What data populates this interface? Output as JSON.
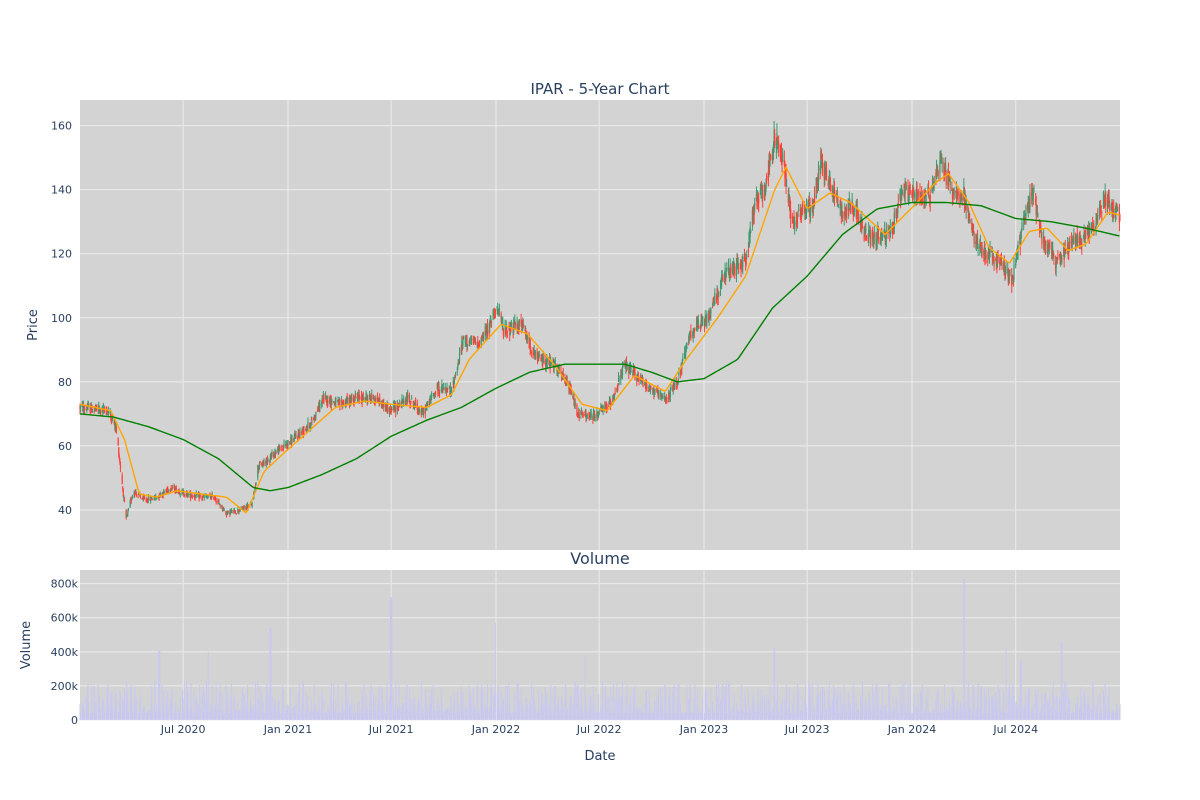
{
  "chart_data": [
    {
      "type": "candlestick",
      "title": "IPAR - 5-Year Chart",
      "ylabel": "Price",
      "xlabel": "",
      "ylim": [
        27.5,
        168
      ],
      "yticks": [
        40,
        60,
        80,
        100,
        120,
        140,
        160
      ],
      "ytick_labels": [
        "40",
        "60",
        "80",
        "100",
        "120",
        "140",
        "160"
      ],
      "x_range": [
        "2020-01-02",
        "2024-12-31"
      ],
      "grid": true,
      "legend": "none",
      "colors": {
        "plot_bg": "#d3d3d3",
        "grid": "#ebebeb",
        "increasing": "#3d9970",
        "decreasing": "#ff4136",
        "ma_short": "#ffa500",
        "ma_long": "#008000",
        "text": "#2a3f5f"
      },
      "price_anchors": [
        [
          "2020-01-02",
          72
        ],
        [
          "2020-02-20",
          71
        ],
        [
          "2020-03-05",
          66
        ],
        [
          "2020-03-12",
          55
        ],
        [
          "2020-03-23",
          37
        ],
        [
          "2020-04-05",
          46
        ],
        [
          "2020-04-25",
          43
        ],
        [
          "2020-05-15",
          44
        ],
        [
          "2020-06-10",
          47
        ],
        [
          "2020-07-05",
          45
        ],
        [
          "2020-08-01",
          44
        ],
        [
          "2020-08-25",
          44
        ],
        [
          "2020-09-15",
          39
        ],
        [
          "2020-10-10",
          40
        ],
        [
          "2020-10-31",
          42
        ],
        [
          "2020-11-09",
          53
        ],
        [
          "2020-12-10",
          58
        ],
        [
          "2021-01-10",
          62
        ],
        [
          "2021-02-10",
          67
        ],
        [
          "2021-03-05",
          75
        ],
        [
          "2021-04-01",
          73
        ],
        [
          "2021-05-01",
          75
        ],
        [
          "2021-06-01",
          75
        ],
        [
          "2021-07-01",
          71
        ],
        [
          "2021-08-01",
          75
        ],
        [
          "2021-08-25",
          70
        ],
        [
          "2021-09-20",
          78
        ],
        [
          "2021-10-15",
          77
        ],
        [
          "2021-11-05",
          93
        ],
        [
          "2021-12-01",
          92
        ],
        [
          "2021-12-20",
          97
        ],
        [
          "2022-01-01",
          104
        ],
        [
          "2022-01-15",
          96
        ],
        [
          "2022-02-15",
          98
        ],
        [
          "2022-03-10",
          88
        ],
        [
          "2022-04-15",
          85
        ],
        [
          "2022-05-10",
          78
        ],
        [
          "2022-05-25",
          70
        ],
        [
          "2022-06-20",
          69
        ],
        [
          "2022-07-20",
          73
        ],
        [
          "2022-08-15",
          85
        ],
        [
          "2022-09-10",
          81
        ],
        [
          "2022-10-05",
          77
        ],
        [
          "2022-10-25",
          74
        ],
        [
          "2022-11-15",
          80
        ],
        [
          "2022-12-10",
          96
        ],
        [
          "2023-01-05",
          99
        ],
        [
          "2023-02-05",
          113
        ],
        [
          "2023-03-15",
          118
        ],
        [
          "2023-04-01",
          136
        ],
        [
          "2023-04-20",
          142
        ],
        [
          "2023-05-05",
          156
        ],
        [
          "2023-05-20",
          150
        ],
        [
          "2023-06-05",
          130
        ],
        [
          "2023-06-25",
          134
        ],
        [
          "2023-07-10",
          134
        ],
        [
          "2023-07-25",
          149
        ],
        [
          "2023-08-15",
          140
        ],
        [
          "2023-09-01",
          133
        ],
        [
          "2023-09-20",
          136
        ],
        [
          "2023-10-10",
          126
        ],
        [
          "2023-11-01",
          125
        ],
        [
          "2023-11-25",
          126
        ],
        [
          "2023-12-15",
          140
        ],
        [
          "2024-01-10",
          138
        ],
        [
          "2024-02-01",
          138
        ],
        [
          "2024-02-20",
          150
        ],
        [
          "2024-03-10",
          140
        ],
        [
          "2024-04-01",
          138
        ],
        [
          "2024-04-20",
          124
        ],
        [
          "2024-05-10",
          120
        ],
        [
          "2024-06-05",
          117
        ],
        [
          "2024-06-25",
          112
        ],
        [
          "2024-07-15",
          130
        ],
        [
          "2024-08-01",
          140
        ],
        [
          "2024-08-15",
          126
        ],
        [
          "2024-09-10",
          117
        ],
        [
          "2024-10-05",
          123
        ],
        [
          "2024-10-25",
          125
        ],
        [
          "2024-11-15",
          128
        ],
        [
          "2024-12-05",
          138
        ],
        [
          "2024-12-31",
          131
        ]
      ],
      "ma_short_anchors": [
        [
          "2020-01-02",
          73
        ],
        [
          "2020-02-25",
          71
        ],
        [
          "2020-03-20",
          62
        ],
        [
          "2020-04-15",
          45
        ],
        [
          "2020-05-15",
          44
        ],
        [
          "2020-06-20",
          46
        ],
        [
          "2020-08-01",
          45
        ],
        [
          "2020-09-15",
          44
        ],
        [
          "2020-10-20",
          39
        ],
        [
          "2020-11-20",
          52
        ],
        [
          "2020-12-20",
          57
        ],
        [
          "2021-02-15",
          66
        ],
        [
          "2021-03-25",
          72
        ],
        [
          "2021-05-15",
          74
        ],
        [
          "2021-07-01",
          73
        ],
        [
          "2021-09-01",
          72
        ],
        [
          "2021-10-15",
          76
        ],
        [
          "2021-11-15",
          87
        ],
        [
          "2022-01-10",
          98
        ],
        [
          "2022-02-25",
          95
        ],
        [
          "2022-04-15",
          85
        ],
        [
          "2022-06-01",
          73
        ],
        [
          "2022-07-15",
          71
        ],
        [
          "2022-09-01",
          82
        ],
        [
          "2022-10-25",
          77
        ],
        [
          "2022-12-01",
          87
        ],
        [
          "2023-01-25",
          100
        ],
        [
          "2023-03-15",
          113
        ],
        [
          "2023-05-05",
          140
        ],
        [
          "2023-05-25",
          147
        ],
        [
          "2023-07-01",
          134
        ],
        [
          "2023-08-10",
          139
        ],
        [
          "2023-09-15",
          136
        ],
        [
          "2023-11-15",
          126
        ],
        [
          "2024-01-10",
          136
        ],
        [
          "2024-02-10",
          142
        ],
        [
          "2024-03-05",
          145
        ],
        [
          "2024-04-10",
          136
        ],
        [
          "2024-05-15",
          122
        ],
        [
          "2024-06-20",
          117
        ],
        [
          "2024-07-25",
          127
        ],
        [
          "2024-08-25",
          128
        ],
        [
          "2024-10-01",
          121
        ],
        [
          "2024-11-01",
          123
        ],
        [
          "2024-12-10",
          133
        ],
        [
          "2024-12-31",
          132
        ]
      ],
      "ma_long_anchors": [
        [
          "2020-01-02",
          70
        ],
        [
          "2020-03-01",
          69
        ],
        [
          "2020-05-01",
          66
        ],
        [
          "2020-07-01",
          62
        ],
        [
          "2020-09-01",
          56
        ],
        [
          "2020-11-01",
          47
        ],
        [
          "2020-12-01",
          46
        ],
        [
          "2021-01-01",
          47
        ],
        [
          "2021-03-01",
          51
        ],
        [
          "2021-05-01",
          56
        ],
        [
          "2021-07-01",
          63
        ],
        [
          "2021-09-01",
          68
        ],
        [
          "2021-11-01",
          72
        ],
        [
          "2022-01-01",
          78
        ],
        [
          "2022-03-01",
          83
        ],
        [
          "2022-05-01",
          85.5
        ],
        [
          "2022-07-01",
          85.5
        ],
        [
          "2022-08-15",
          85.5
        ],
        [
          "2022-10-01",
          83
        ],
        [
          "2022-11-15",
          80
        ],
        [
          "2023-01-01",
          81
        ],
        [
          "2023-03-01",
          87
        ],
        [
          "2023-05-01",
          103
        ],
        [
          "2023-07-01",
          113
        ],
        [
          "2023-09-01",
          126
        ],
        [
          "2023-11-01",
          134
        ],
        [
          "2024-01-01",
          136
        ],
        [
          "2024-03-01",
          136
        ],
        [
          "2024-05-01",
          135
        ],
        [
          "2024-07-01",
          131
        ],
        [
          "2024-09-01",
          130
        ],
        [
          "2024-11-01",
          128
        ],
        [
          "2024-12-31",
          125.5
        ]
      ]
    },
    {
      "type": "bar",
      "title": "Volume",
      "ylabel": "Volume",
      "xlabel": "Date",
      "ylim": [
        0,
        880000
      ],
      "yticks": [
        0,
        200000,
        400000,
        600000,
        800000
      ],
      "ytick_labels": [
        "0",
        "200k",
        "400k",
        "600k",
        "800k"
      ],
      "x_range": [
        "2020-01-02",
        "2024-12-31"
      ],
      "grid": true,
      "colors": {
        "plot_bg": "#d3d3d3",
        "bar": "#c8c8f0",
        "grid": "#ebebeb"
      },
      "volume_spikes": [
        [
          "2020-05-20",
          410000
        ],
        [
          "2020-08-15",
          400000
        ],
        [
          "2020-12-01",
          540000
        ],
        [
          "2021-07-01",
          720000
        ],
        [
          "2022-01-01",
          570000
        ],
        [
          "2022-06-05",
          380000
        ],
        [
          "2023-05-05",
          420000
        ],
        [
          "2024-04-01",
          830000
        ],
        [
          "2024-06-15",
          420000
        ],
        [
          "2024-07-10",
          350000
        ],
        [
          "2024-09-20",
          460000
        ]
      ],
      "x_tick_labels": [
        "Jul 2020",
        "Jan 2021",
        "Jul 2021",
        "Jan 2022",
        "Jul 2022",
        "Jan 2023",
        "Jul 2023",
        "Jan 2024",
        "Jul 2024"
      ],
      "x_tick_dates": [
        "2020-07-01",
        "2021-01-01",
        "2021-07-01",
        "2022-01-01",
        "2022-07-01",
        "2023-01-01",
        "2023-07-01",
        "2024-01-01",
        "2024-07-01"
      ]
    }
  ]
}
